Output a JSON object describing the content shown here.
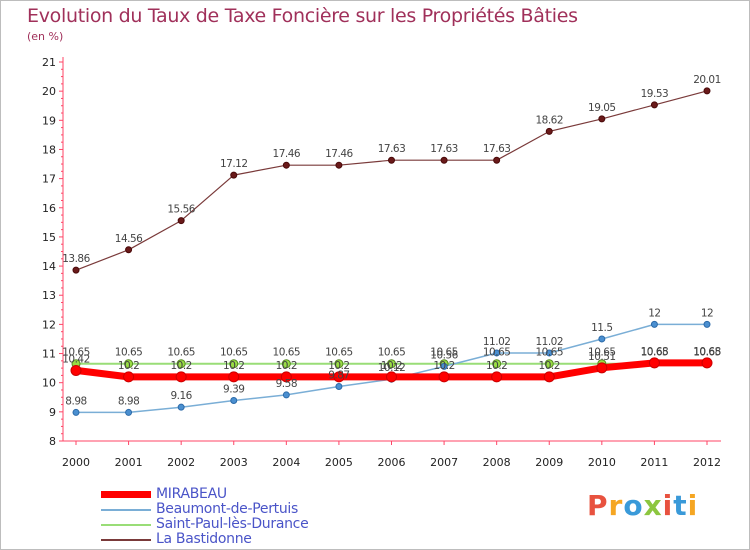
{
  "title": "Evolution du Taux de Taxe Foncière sur les Propriétés Bâties",
  "subtitle": "(en %)",
  "logo": {
    "letters": [
      "P",
      "r",
      "o",
      "x",
      "i",
      "t",
      "i"
    ],
    "colors": [
      "#e8523f",
      "#f5a623",
      "#3a9ad9",
      "#8cc63f",
      "#e8523f",
      "#3a9ad9",
      "#f5a623"
    ]
  },
  "chart_data": {
    "type": "line",
    "title": "Evolution du Taux de Taxe Foncière sur les Propriétés Bâties",
    "ylabel": "(en %)",
    "x": [
      2000,
      2001,
      2002,
      2003,
      2004,
      2005,
      2006,
      2007,
      2008,
      2009,
      2010,
      2011,
      2012
    ],
    "x_tick_labels": [
      "2000",
      "2001",
      "2002",
      "2003",
      "2004",
      "2005",
      "2006",
      "2007",
      "2008",
      "2009",
      "2010",
      "2011",
      "2012"
    ],
    "ylim": [
      8,
      21
    ],
    "y_ticks": [
      8,
      9,
      10,
      11,
      12,
      13,
      14,
      15,
      16,
      17,
      18,
      19,
      20,
      21
    ],
    "grid": false,
    "legend": "bottom-left",
    "series": [
      {
        "name": "MIRABEAU",
        "color": "#ff0000",
        "values": [
          10.42,
          10.2,
          10.2,
          10.2,
          10.2,
          10.2,
          10.2,
          10.2,
          10.2,
          10.2,
          10.51,
          10.68,
          10.68
        ],
        "labels": [
          "10.42",
          "10.2",
          "10.2",
          "10.2",
          "10.2",
          "10.2",
          "10.2",
          "10.2",
          "10.2",
          "10.2",
          "10.51",
          "10.68",
          "10.68"
        ]
      },
      {
        "name": "Beaumont-de-Pertuis",
        "color": "#7aaed6",
        "values": [
          8.98,
          8.98,
          9.16,
          9.39,
          9.58,
          9.87,
          10.12,
          10.56,
          11.02,
          11.02,
          11.5,
          12,
          12
        ],
        "labels": [
          "8.98",
          "8.98",
          "9.16",
          "9.39",
          "9.58",
          "9.87",
          "10.12",
          "10.56",
          "11.02",
          "11.02",
          "11.5",
          "12",
          "12"
        ]
      },
      {
        "name": "Saint-Paul-lès-Durance",
        "color": "#99dd77",
        "values": [
          10.65,
          10.65,
          10.65,
          10.65,
          10.65,
          10.65,
          10.65,
          10.65,
          10.65,
          10.65,
          10.65,
          10.65,
          10.65
        ],
        "labels": [
          "10.65",
          "10.65",
          "10.65",
          "10.65",
          "10.65",
          "10.65",
          "10.65",
          "10.65",
          "10.65",
          "10.65",
          "10.65",
          "10.65",
          "10.65"
        ]
      },
      {
        "name": "La Bastidonne",
        "color": "#7a3a3a",
        "values": [
          13.86,
          14.56,
          15.56,
          17.12,
          17.46,
          17.46,
          17.63,
          17.63,
          17.63,
          18.62,
          19.05,
          19.53,
          20.01
        ],
        "labels": [
          "13.86",
          "14.56",
          "15.56",
          "17.12",
          "17.46",
          "17.46",
          "17.63",
          "17.63",
          "17.63",
          "18.62",
          "19.05",
          "19.53",
          "20.01"
        ]
      }
    ]
  }
}
